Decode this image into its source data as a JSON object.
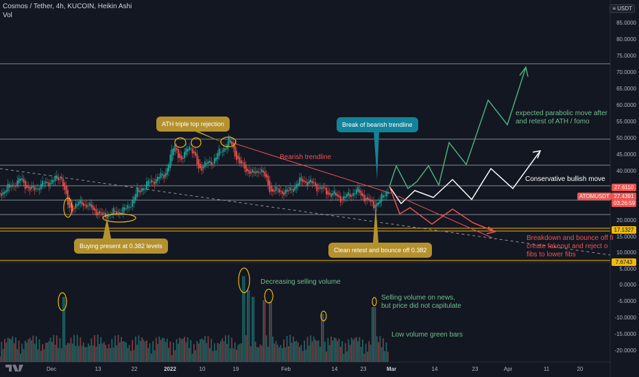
{
  "header": {
    "symbol_line": "Cosmos / Tether, 4h, KUCOIN, Heikin Ashi",
    "vol_label": "Vol"
  },
  "currency_button": {
    "label": "USDT",
    "icon": "currency-icon"
  },
  "y_axis": {
    "price_ticks": [
      "85.0000",
      "80.0000",
      "75.0000",
      "70.0000",
      "65.0000",
      "60.0000",
      "55.0000",
      "50.0000",
      "45.0000",
      "40.0000",
      "35.0000",
      "30.0000",
      "20.0000",
      "15.0000",
      "10.0000",
      "5.0000"
    ],
    "volume_ticks": [
      "0.0000",
      "-5.0000",
      "-10.0000",
      "-15.0000",
      "-20.0000"
    ]
  },
  "x_axis": {
    "ticks": [
      "Dec",
      "13",
      "22",
      "2022",
      "10",
      "19",
      "Feb",
      "14",
      "23",
      "Mar",
      "14",
      "23",
      "Apr",
      "11",
      "20"
    ],
    "bold_ticks": [
      "2022",
      "Mar"
    ]
  },
  "price_labels": {
    "high": "27.6110",
    "symbol": "ATOMUSDT",
    "current": "27.4391",
    "countdown": "03:26:59",
    "level_upper": "17.1327",
    "level_lower": "7.6743"
  },
  "colors": {
    "background": "#131722",
    "up": "#26a69a",
    "down": "#ef5350",
    "gold": "#b5912d",
    "teal": "#12849a",
    "green_note": "#6fbf8a",
    "red_note": "#ef5350",
    "red_trend": "#e84d4d"
  },
  "callouts": {
    "ath": "ATH triple top rejection",
    "break": "Break of bearish trendline",
    "buying": "Buying present at 0.382 levels",
    "retest": "Clean retest and bounce off 0.382"
  },
  "notes": {
    "bearish": "Bearish trendline",
    "parabolic": "expected parabolic move after\nand retest of ATH / fomo",
    "conservative": "Conservative bullish move",
    "breakdown": "Breakdown and bounce off fi\ncreate fakeout and reject o\nfibs to lower fibs",
    "decreasing": "Decreasing selling volume",
    "selling_news": "Selling volume on news,\nbut price did not capitulate",
    "low_volume": "Low volume green bars"
  }
}
